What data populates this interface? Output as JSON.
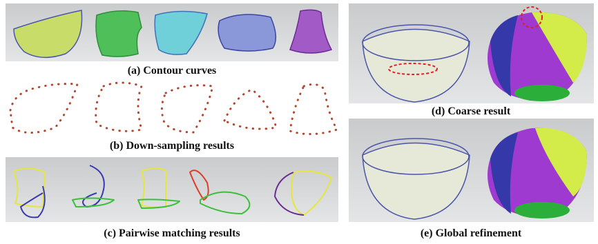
{
  "figure": {
    "panels": [
      {
        "label": "(a) Contour curves"
      },
      {
        "label": "(b) Down-sampling results"
      },
      {
        "label": "(c) Pairwise matching results"
      },
      {
        "label": "(d) Coarse result"
      },
      {
        "label": "(e) Global refinement"
      }
    ]
  }
}
